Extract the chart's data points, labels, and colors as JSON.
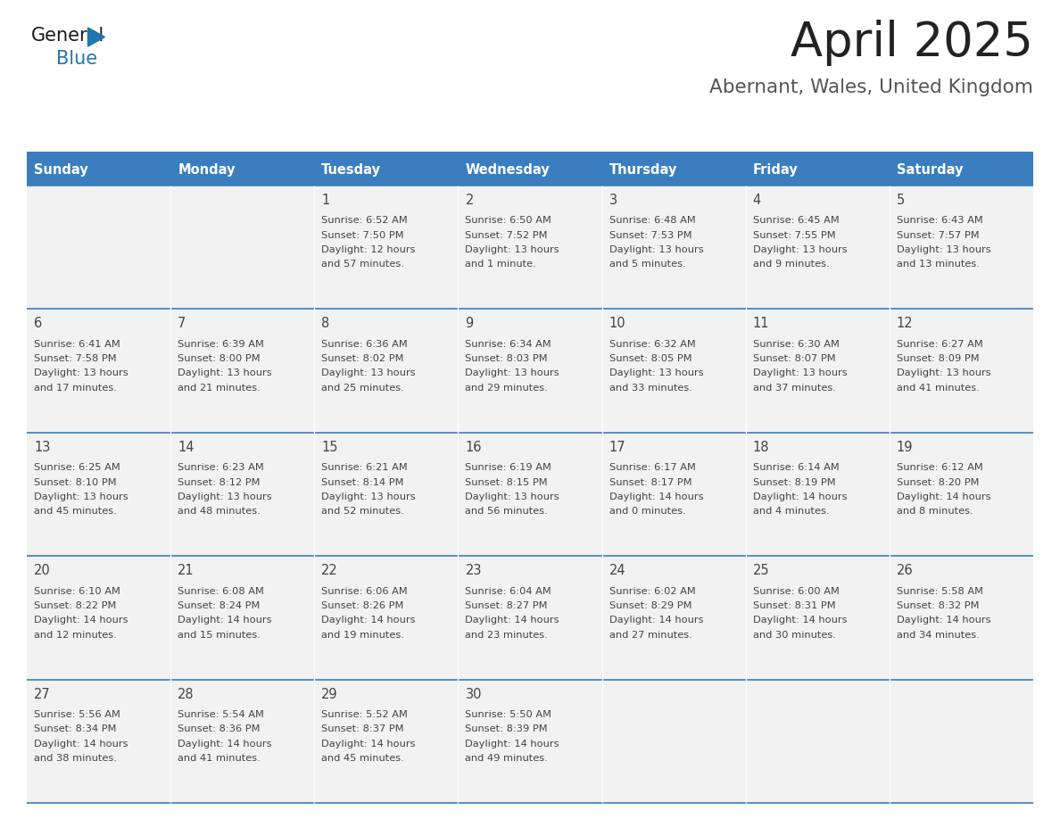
{
  "title": "April 2025",
  "subtitle": "Abernant, Wales, United Kingdom",
  "header_bg": "#3a7ebf",
  "header_text_color": "#ffffff",
  "cell_bg": "#f2f2f2",
  "cell_bg_empty": "#ffffff",
  "day_headers": [
    "Sunday",
    "Monday",
    "Tuesday",
    "Wednesday",
    "Thursday",
    "Friday",
    "Saturday"
  ],
  "separator_color": "#3a7ebf",
  "title_color": "#222222",
  "subtitle_color": "#555555",
  "text_color": "#444444",
  "weeks": [
    [
      {
        "day": null,
        "sunrise": null,
        "sunset": null,
        "daylight": null
      },
      {
        "day": null,
        "sunrise": null,
        "sunset": null,
        "daylight": null
      },
      {
        "day": 1,
        "sunrise": "6:52 AM",
        "sunset": "7:50 PM",
        "daylight": "12 hours and 57 minutes."
      },
      {
        "day": 2,
        "sunrise": "6:50 AM",
        "sunset": "7:52 PM",
        "daylight": "13 hours and 1 minute."
      },
      {
        "day": 3,
        "sunrise": "6:48 AM",
        "sunset": "7:53 PM",
        "daylight": "13 hours and 5 minutes."
      },
      {
        "day": 4,
        "sunrise": "6:45 AM",
        "sunset": "7:55 PM",
        "daylight": "13 hours and 9 minutes."
      },
      {
        "day": 5,
        "sunrise": "6:43 AM",
        "sunset": "7:57 PM",
        "daylight": "13 hours and 13 minutes."
      }
    ],
    [
      {
        "day": 6,
        "sunrise": "6:41 AM",
        "sunset": "7:58 PM",
        "daylight": "13 hours and 17 minutes."
      },
      {
        "day": 7,
        "sunrise": "6:39 AM",
        "sunset": "8:00 PM",
        "daylight": "13 hours and 21 minutes."
      },
      {
        "day": 8,
        "sunrise": "6:36 AM",
        "sunset": "8:02 PM",
        "daylight": "13 hours and 25 minutes."
      },
      {
        "day": 9,
        "sunrise": "6:34 AM",
        "sunset": "8:03 PM",
        "daylight": "13 hours and 29 minutes."
      },
      {
        "day": 10,
        "sunrise": "6:32 AM",
        "sunset": "8:05 PM",
        "daylight": "13 hours and 33 minutes."
      },
      {
        "day": 11,
        "sunrise": "6:30 AM",
        "sunset": "8:07 PM",
        "daylight": "13 hours and 37 minutes."
      },
      {
        "day": 12,
        "sunrise": "6:27 AM",
        "sunset": "8:09 PM",
        "daylight": "13 hours and 41 minutes."
      }
    ],
    [
      {
        "day": 13,
        "sunrise": "6:25 AM",
        "sunset": "8:10 PM",
        "daylight": "13 hours and 45 minutes."
      },
      {
        "day": 14,
        "sunrise": "6:23 AM",
        "sunset": "8:12 PM",
        "daylight": "13 hours and 48 minutes."
      },
      {
        "day": 15,
        "sunrise": "6:21 AM",
        "sunset": "8:14 PM",
        "daylight": "13 hours and 52 minutes."
      },
      {
        "day": 16,
        "sunrise": "6:19 AM",
        "sunset": "8:15 PM",
        "daylight": "13 hours and 56 minutes."
      },
      {
        "day": 17,
        "sunrise": "6:17 AM",
        "sunset": "8:17 PM",
        "daylight": "14 hours and 0 minutes."
      },
      {
        "day": 18,
        "sunrise": "6:14 AM",
        "sunset": "8:19 PM",
        "daylight": "14 hours and 4 minutes."
      },
      {
        "day": 19,
        "sunrise": "6:12 AM",
        "sunset": "8:20 PM",
        "daylight": "14 hours and 8 minutes."
      }
    ],
    [
      {
        "day": 20,
        "sunrise": "6:10 AM",
        "sunset": "8:22 PM",
        "daylight": "14 hours and 12 minutes."
      },
      {
        "day": 21,
        "sunrise": "6:08 AM",
        "sunset": "8:24 PM",
        "daylight": "14 hours and 15 minutes."
      },
      {
        "day": 22,
        "sunrise": "6:06 AM",
        "sunset": "8:26 PM",
        "daylight": "14 hours and 19 minutes."
      },
      {
        "day": 23,
        "sunrise": "6:04 AM",
        "sunset": "8:27 PM",
        "daylight": "14 hours and 23 minutes."
      },
      {
        "day": 24,
        "sunrise": "6:02 AM",
        "sunset": "8:29 PM",
        "daylight": "14 hours and 27 minutes."
      },
      {
        "day": 25,
        "sunrise": "6:00 AM",
        "sunset": "8:31 PM",
        "daylight": "14 hours and 30 minutes."
      },
      {
        "day": 26,
        "sunrise": "5:58 AM",
        "sunset": "8:32 PM",
        "daylight": "14 hours and 34 minutes."
      }
    ],
    [
      {
        "day": 27,
        "sunrise": "5:56 AM",
        "sunset": "8:34 PM",
        "daylight": "14 hours and 38 minutes."
      },
      {
        "day": 28,
        "sunrise": "5:54 AM",
        "sunset": "8:36 PM",
        "daylight": "14 hours and 41 minutes."
      },
      {
        "day": 29,
        "sunrise": "5:52 AM",
        "sunset": "8:37 PM",
        "daylight": "14 hours and 45 minutes."
      },
      {
        "day": 30,
        "sunrise": "5:50 AM",
        "sunset": "8:39 PM",
        "daylight": "14 hours and 49 minutes."
      },
      {
        "day": null,
        "sunrise": null,
        "sunset": null,
        "daylight": null
      },
      {
        "day": null,
        "sunrise": null,
        "sunset": null,
        "daylight": null
      },
      {
        "day": null,
        "sunrise": null,
        "sunset": null,
        "daylight": null
      }
    ]
  ]
}
